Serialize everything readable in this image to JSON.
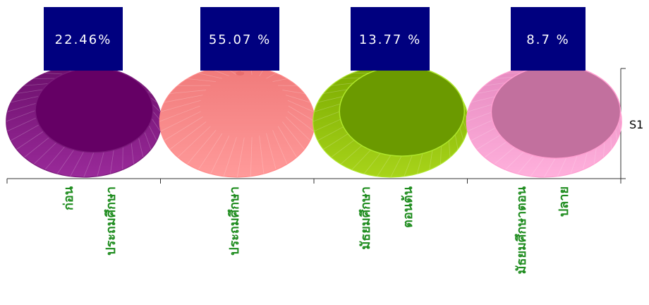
{
  "chart_data": {
    "type": "bar",
    "categories": [
      [
        "ก่อน",
        "ประถมศึกษา"
      ],
      [
        "ประถมศึกษา"
      ],
      [
        "มัธยมศึกษา",
        "ตอนต้น"
      ],
      [
        "มัธยมศึกษาตอน",
        "ปลาย"
      ]
    ],
    "series": [
      {
        "name": "S1",
        "values": [
          22.46,
          55.07,
          13.77,
          8.7
        ]
      }
    ],
    "data_labels": [
      "22.46%",
      "55.07 %",
      "13.77 %",
      "8.7 %"
    ],
    "series_axis_label": "S1",
    "label_box_color": "#00007f",
    "label_text_color": "#ffffff",
    "category_label_color": "#1e8c1e",
    "cone_colors": [
      {
        "base": "#6b0f6b",
        "light": "#9a2a9a",
        "top": "#650065",
        "edge": "#7a1a7a"
      },
      {
        "base": "#f07a7a",
        "light": "#ff9a9a",
        "top": "#e86e6e",
        "edge": "#ff8a8a"
      },
      {
        "base": "#7aaa00",
        "light": "#a8d41a",
        "top": "#6b9a00",
        "edge": "#aee62a"
      },
      {
        "base": "#e68ac0",
        "light": "#ffb0dc",
        "top": "#c2709e",
        "edge": "#ff9ed0"
      }
    ]
  }
}
